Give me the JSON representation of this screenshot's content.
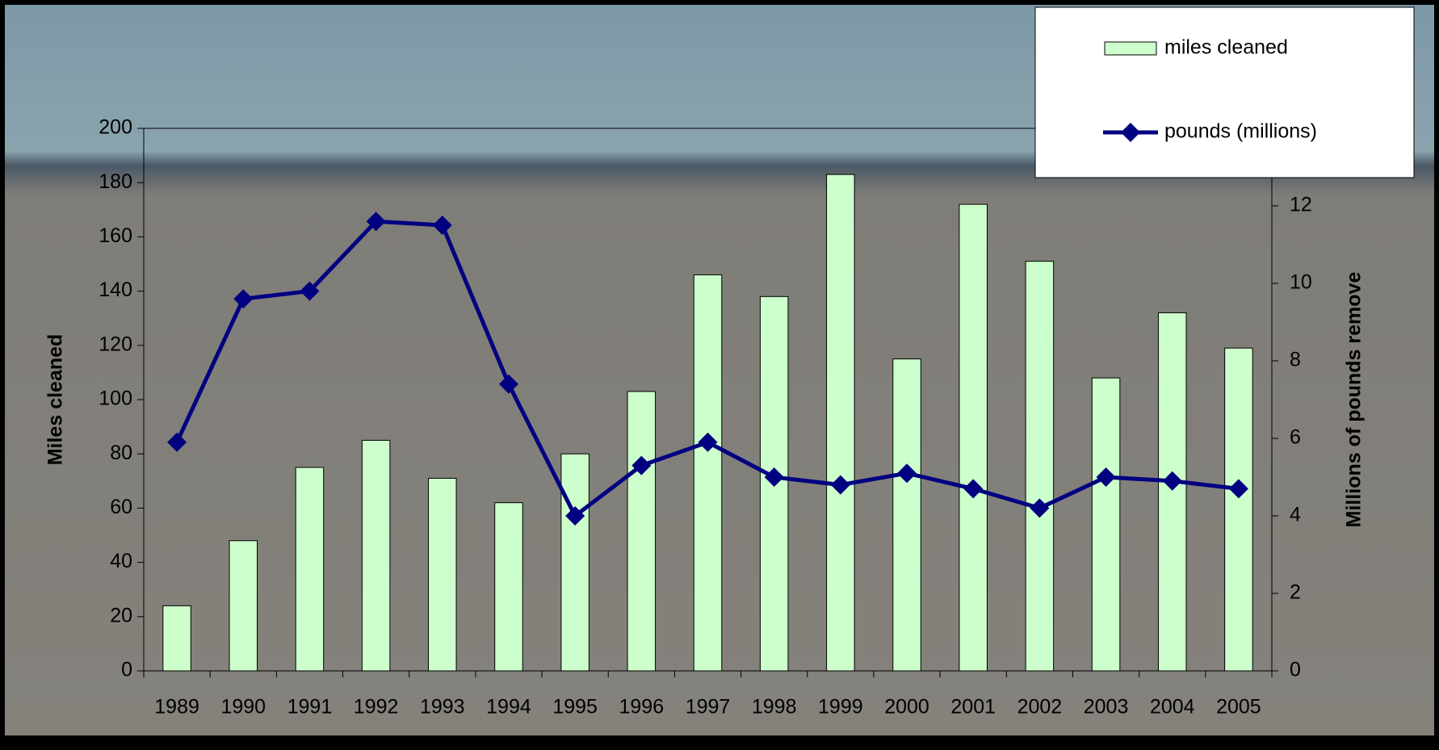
{
  "chart_data": {
    "type": "bar-line",
    "categories": [
      "1989",
      "1990",
      "1991",
      "1992",
      "1993",
      "1994",
      "1995",
      "1996",
      "1997",
      "1998",
      "1999",
      "2000",
      "2001",
      "2002",
      "2003",
      "2004",
      "2005"
    ],
    "series": [
      {
        "name": "miles cleaned",
        "color": "#ccffcc",
        "type": "bar",
        "values": [
          24,
          48,
          75,
          85,
          71,
          62,
          80,
          103,
          146,
          138,
          183,
          115,
          172,
          151,
          108,
          132,
          119
        ]
      },
      {
        "name": "pounds (millions)",
        "color": "#000080",
        "type": "line",
        "axis": "y2",
        "values": [
          5.9,
          9.6,
          9.8,
          11.6,
          11.5,
          7.4,
          4.0,
          5.3,
          5.9,
          5.0,
          4.8,
          5.1,
          4.7,
          4.2,
          5.0,
          4.9,
          4.7
        ]
      }
    ],
    "ylabel": "Miles cleaned",
    "y2label": "Millions of pounds remove",
    "ylim": [
      0,
      200
    ],
    "yticks": [
      0,
      20,
      40,
      60,
      80,
      100,
      120,
      140,
      160,
      180,
      200
    ],
    "y2lim": [
      0,
      14
    ],
    "y2ticks": [
      0,
      2,
      4,
      6,
      8,
      10,
      12
    ],
    "legend": "top-right",
    "grid": false
  }
}
